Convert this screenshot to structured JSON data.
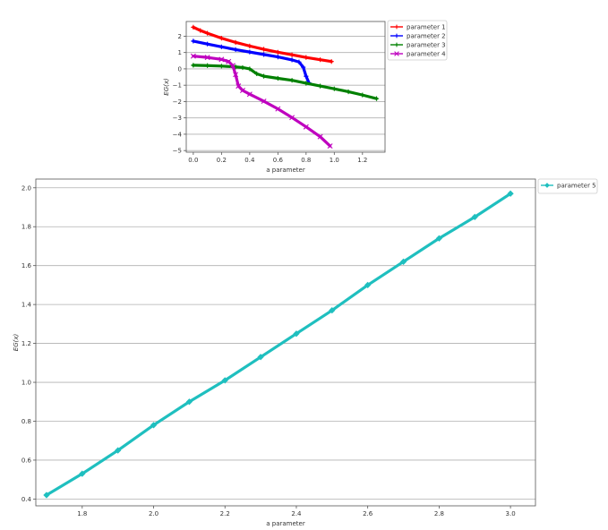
{
  "chart_data": [
    {
      "type": "line",
      "title": "",
      "xlabel": "a parameter",
      "ylabel": "EG(x)",
      "xlim": [
        -0.05,
        1.36
      ],
      "ylim": [
        -5.1,
        2.9
      ],
      "xticks": [
        "0.0",
        "0.2",
        "0.4",
        "0.6",
        "0.8",
        "1.0",
        "1.2"
      ],
      "yticks": [
        "2",
        "1",
        "0",
        "−1",
        "−2",
        "−3",
        "−4",
        "−5"
      ],
      "xtick_values": [
        0.0,
        0.2,
        0.4,
        0.6,
        0.8,
        1.0,
        1.2
      ],
      "ytick_values": [
        2,
        1,
        0,
        -1,
        -2,
        -3,
        -4,
        -5
      ],
      "grid": "horizontal",
      "legend": "outside-right",
      "series": [
        {
          "name": "parameter 1",
          "color": "#ff0000",
          "marker": "plus",
          "x": [
            0.0,
            0.05,
            0.1,
            0.2,
            0.3,
            0.4,
            0.5,
            0.6,
            0.7,
            0.8,
            0.9,
            0.98
          ],
          "y": [
            2.55,
            2.35,
            2.18,
            1.88,
            1.62,
            1.4,
            1.2,
            1.02,
            0.86,
            0.7,
            0.56,
            0.45
          ]
        },
        {
          "name": "parameter 2",
          "color": "#0000ff",
          "marker": "plus",
          "x": [
            0.0,
            0.1,
            0.2,
            0.3,
            0.4,
            0.5,
            0.6,
            0.7,
            0.75,
            0.78,
            0.8,
            0.82
          ],
          "y": [
            1.7,
            1.52,
            1.35,
            1.18,
            1.03,
            0.88,
            0.73,
            0.55,
            0.42,
            0.1,
            -0.45,
            -0.85
          ]
        },
        {
          "name": "parameter 3",
          "color": "#008000",
          "marker": "plus",
          "x": [
            0.0,
            0.1,
            0.2,
            0.3,
            0.35,
            0.4,
            0.45,
            0.5,
            0.6,
            0.7,
            0.8,
            0.9,
            1.0,
            1.1,
            1.2,
            1.3
          ],
          "y": [
            0.22,
            0.2,
            0.17,
            0.12,
            0.08,
            0.0,
            -0.3,
            -0.45,
            -0.58,
            -0.7,
            -0.88,
            -1.05,
            -1.22,
            -1.4,
            -1.6,
            -1.82
          ]
        },
        {
          "name": "parameter 4",
          "color": "#bf00bf",
          "marker": "x",
          "x": [
            0.0,
            0.1,
            0.2,
            0.25,
            0.28,
            0.3,
            0.32,
            0.35,
            0.4,
            0.5,
            0.6,
            0.7,
            0.8,
            0.9,
            0.97
          ],
          "y": [
            0.78,
            0.7,
            0.58,
            0.45,
            0.2,
            -0.35,
            -1.05,
            -1.32,
            -1.55,
            -1.98,
            -2.45,
            -2.98,
            -3.55,
            -4.15,
            -4.72
          ]
        }
      ]
    },
    {
      "type": "line",
      "title": "",
      "xlabel": "a parameter",
      "ylabel": "EG(x)",
      "xlim": [
        1.67,
        3.07
      ],
      "ylim": [
        0.365,
        2.045
      ],
      "xticks": [
        "1.8",
        "2.0",
        "2.2",
        "2.4",
        "2.6",
        "2.8",
        "3.0"
      ],
      "yticks": [
        "0.4",
        "0.6",
        "0.8",
        "1.0",
        "1.2",
        "1.4",
        "1.6",
        "1.8",
        "2.0"
      ],
      "xtick_values": [
        1.8,
        2.0,
        2.2,
        2.4,
        2.6,
        2.8,
        3.0
      ],
      "ytick_values": [
        0.4,
        0.6,
        0.8,
        1.0,
        1.2,
        1.4,
        1.6,
        1.8,
        2.0
      ],
      "grid": "horizontal",
      "legend": "outside-right",
      "series": [
        {
          "name": "parameter 5",
          "color": "#1fbfbf",
          "marker": "diamond",
          "x": [
            1.7,
            1.8,
            1.9,
            2.0,
            2.1,
            2.2,
            2.3,
            2.4,
            2.5,
            2.6,
            2.7,
            2.8,
            2.9,
            3.0
          ],
          "y": [
            0.42,
            0.53,
            0.65,
            0.78,
            0.9,
            1.01,
            1.13,
            1.25,
            1.37,
            1.5,
            1.62,
            1.74,
            1.85,
            1.97
          ]
        }
      ]
    }
  ]
}
